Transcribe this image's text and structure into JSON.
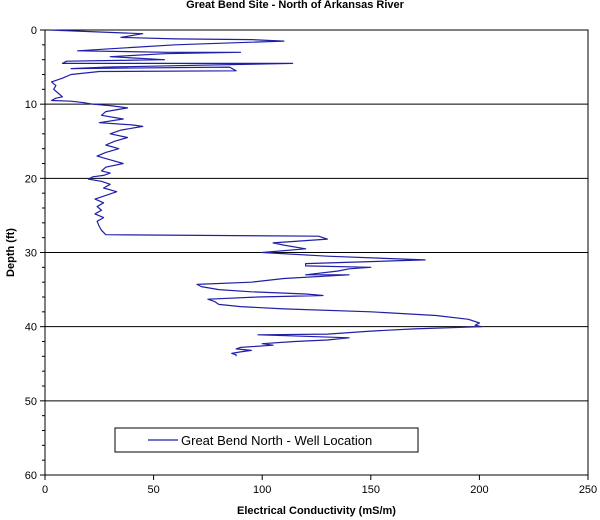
{
  "chart_data": {
    "type": "line",
    "title": "Great Bend Site - North of Arkansas River",
    "xlabel": "Electrical Conductivity (mS/m)",
    "ylabel": "Depth (ft)",
    "xlim": [
      0,
      250
    ],
    "ylim": [
      0,
      60
    ],
    "y_inverted": true,
    "x_ticks": [
      0,
      50,
      100,
      150,
      200,
      250
    ],
    "y_ticks": [
      0,
      10,
      20,
      30,
      40,
      50,
      60
    ],
    "gridlines": "horizontal at major y ticks",
    "legend_position": "lower-middle",
    "colors": {
      "series": "#1f1fa8",
      "grid": "#000000"
    },
    "series": [
      {
        "name": "Great Bend North - Well Location",
        "x_conductivity": [
          2,
          45,
          35,
          60,
          95,
          110,
          60,
          15,
          57,
          90,
          55,
          30,
          55,
          10,
          8,
          50,
          114,
          28,
          12,
          85,
          88,
          25,
          12,
          8,
          3,
          5,
          4,
          6,
          8,
          5,
          3,
          12,
          18,
          22,
          30,
          38,
          28,
          26,
          36,
          25,
          40,
          45,
          35,
          30,
          38,
          32,
          28,
          34,
          28,
          24,
          30,
          36,
          28,
          26,
          30,
          27,
          22,
          20,
          26,
          30,
          27,
          33,
          28,
          23,
          27,
          24,
          26,
          23,
          27,
          24,
          25,
          26,
          28,
          126,
          128,
          130,
          105,
          110,
          120,
          100,
          130,
          175,
          120,
          120,
          150,
          140,
          135,
          120,
          140,
          110,
          95,
          70,
          72,
          80,
          95,
          120,
          128,
          98,
          75,
          78,
          80,
          90,
          110,
          150,
          180,
          195,
          200,
          198,
          201,
          170,
          150,
          130,
          98,
          120,
          140,
          130,
          115,
          100,
          105,
          90,
          88,
          95,
          90,
          86,
          88,
          88
        ],
        "y_depth": [
          0,
          0.5,
          1,
          1.2,
          1.3,
          1.5,
          2,
          2.8,
          3,
          3,
          3.2,
          3.6,
          4,
          4.2,
          4.5,
          4.5,
          4.5,
          5,
          5.2,
          5,
          5.5,
          5.6,
          6,
          6.5,
          7,
          7.5,
          8,
          8.5,
          9,
          9.2,
          9.5,
          9.6,
          9.8,
          10,
          10.2,
          10.5,
          11,
          11.5,
          12,
          12.5,
          12.8,
          13,
          13.5,
          14,
          14.5,
          15,
          15.5,
          16,
          16.5,
          17,
          17.5,
          18,
          18.5,
          19,
          19.3,
          19.6,
          19.8,
          20.1,
          20.4,
          20.8,
          21.3,
          21.8,
          22.3,
          22.8,
          23.3,
          23.8,
          24.3,
          24.8,
          25.3,
          25.8,
          26.5,
          27,
          27.6,
          27.8,
          28,
          28.2,
          28.7,
          29,
          29.5,
          30,
          30.5,
          31,
          31.5,
          31.8,
          32,
          32.2,
          32.5,
          33,
          33,
          33.5,
          34,
          34.3,
          34.6,
          35,
          35.3,
          35.6,
          35.8,
          36,
          36.3,
          36.6,
          37,
          37.3,
          37.6,
          38,
          38.5,
          39,
          39.5,
          39.8,
          40,
          40.3,
          40.6,
          41,
          41.1,
          41.3,
          41.5,
          41.8,
          42,
          42.3,
          42.5,
          42.8,
          43,
          43.2,
          43.4,
          43.6,
          43.8,
          44
        ]
      }
    ]
  }
}
